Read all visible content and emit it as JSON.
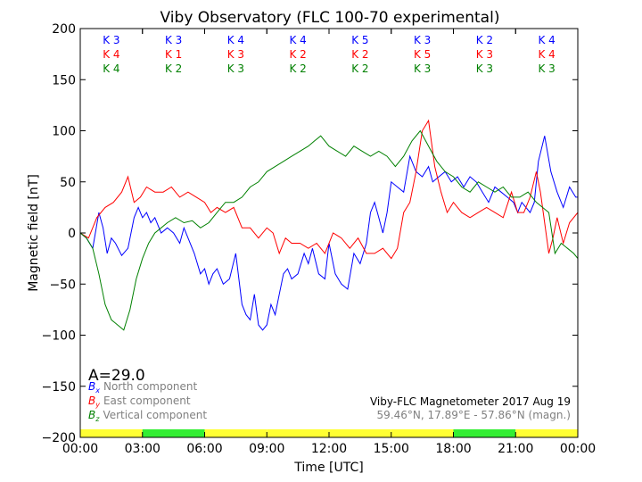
{
  "chart_data": {
    "type": "line",
    "title": "Viby Observatory (FLC 100-70 experimental)",
    "xlabel": "Time [UTC]",
    "ylabel": "Magnetic field [nT]",
    "xlim": [
      0,
      24
    ],
    "ylim": [
      -200,
      200
    ],
    "x_ticks": [
      0,
      3,
      6,
      9,
      12,
      15,
      18,
      21,
      24
    ],
    "x_tick_labels": [
      "00:00",
      "03:00",
      "06:00",
      "09:00",
      "12:00",
      "15:00",
      "18:00",
      "21:00",
      "00:00"
    ],
    "y_ticks": [
      -200,
      -150,
      -100,
      -50,
      0,
      50,
      100,
      150,
      200
    ],
    "y_tick_labels": [
      "−200",
      "−150",
      "−100",
      "−50",
      "0",
      "50",
      "100",
      "150",
      "200"
    ],
    "grid": false,
    "annotation_activity": "A=29.0",
    "legend": {
      "placement": "bottom-left",
      "entries": [
        {
          "symbol": "B",
          "subscript": "x",
          "label": "North component",
          "color": "#0000ff"
        },
        {
          "symbol": "B",
          "subscript": "y",
          "label": "East component",
          "color": "#ff0000"
        },
        {
          "symbol": "B",
          "subscript": "z",
          "label": "Vertical component",
          "color": "#008000"
        }
      ]
    },
    "station_info": {
      "line1": "Viby-FLC Magnetometer 2017 Aug 19",
      "line2": "59.46°N, 17.89°E - 57.86°N (magn.)"
    },
    "k_index_rows": [
      {
        "color": "#0000ff",
        "labels": [
          "K 3",
          "K 3",
          "K 4",
          "K 4",
          "K 5",
          "K 3",
          "K 2",
          "K 4"
        ]
      },
      {
        "color": "#ff0000",
        "labels": [
          "K 4",
          "K 1",
          "K 3",
          "K 2",
          "K 2",
          "K 5",
          "K 3",
          "K 4"
        ]
      },
      {
        "color": "#008000",
        "labels": [
          "K 4",
          "K 2",
          "K 3",
          "K 2",
          "K 2",
          "K 3",
          "K 3",
          "K 3"
        ]
      }
    ],
    "activity_bar": {
      "values": [
        "yellow",
        "green",
        "yellow",
        "yellow",
        "yellow",
        "yellow",
        "green",
        "yellow"
      ],
      "colors": {
        "yellow": "#ffff33",
        "green": "#33ee33"
      }
    },
    "series": [
      {
        "name": "North component",
        "color": "#0000ff",
        "x": [
          0,
          0.3,
          0.6,
          0.9,
          1.1,
          1.3,
          1.5,
          1.7,
          2.0,
          2.3,
          2.6,
          2.8,
          3.0,
          3.2,
          3.4,
          3.6,
          3.9,
          4.2,
          4.5,
          4.8,
          5.0,
          5.2,
          5.5,
          5.8,
          6.0,
          6.2,
          6.4,
          6.6,
          6.9,
          7.2,
          7.5,
          7.8,
          8.0,
          8.2,
          8.4,
          8.6,
          8.8,
          9.0,
          9.2,
          9.4,
          9.6,
          9.8,
          10.0,
          10.2,
          10.5,
          10.8,
          11.0,
          11.2,
          11.5,
          11.8,
          12.0,
          12.3,
          12.6,
          12.9,
          13.2,
          13.5,
          13.8,
          14.0,
          14.2,
          14.4,
          14.6,
          14.8,
          15.0,
          15.3,
          15.6,
          15.9,
          16.2,
          16.5,
          16.8,
          17.0,
          17.3,
          17.6,
          17.9,
          18.2,
          18.5,
          18.8,
          19.1,
          19.4,
          19.7,
          20.0,
          20.3,
          20.6,
          20.9,
          21.1,
          21.3,
          21.5,
          21.7,
          21.9,
          22.1,
          22.4,
          22.7,
          23.0,
          23.3,
          23.6,
          23.9,
          24.0
        ],
        "values": [
          0,
          -5,
          -15,
          20,
          5,
          -20,
          -5,
          -10,
          -22,
          -15,
          15,
          25,
          15,
          20,
          10,
          15,
          0,
          5,
          0,
          -10,
          5,
          -5,
          -20,
          -40,
          -35,
          -50,
          -40,
          -35,
          -50,
          -45,
          -20,
          -70,
          -80,
          -85,
          -60,
          -90,
          -95,
          -90,
          -70,
          -80,
          -60,
          -40,
          -35,
          -45,
          -40,
          -20,
          -30,
          -15,
          -40,
          -45,
          -10,
          -40,
          -50,
          -55,
          -20,
          -30,
          -10,
          20,
          30,
          15,
          0,
          20,
          50,
          45,
          40,
          75,
          60,
          55,
          65,
          50,
          55,
          60,
          50,
          55,
          45,
          55,
          50,
          40,
          30,
          45,
          40,
          35,
          30,
          20,
          30,
          25,
          20,
          30,
          70,
          95,
          60,
          40,
          25,
          45,
          35,
          35
        ]
      },
      {
        "name": "East component",
        "color": "#ff0000",
        "x": [
          0,
          0.4,
          0.8,
          1.2,
          1.6,
          2.0,
          2.3,
          2.6,
          2.9,
          3.2,
          3.6,
          4.0,
          4.4,
          4.8,
          5.2,
          5.6,
          6.0,
          6.3,
          6.6,
          7.0,
          7.4,
          7.8,
          8.2,
          8.6,
          9.0,
          9.3,
          9.6,
          9.9,
          10.2,
          10.6,
          11.0,
          11.4,
          11.8,
          12.2,
          12.6,
          13.0,
          13.4,
          13.8,
          14.2,
          14.6,
          15.0,
          15.3,
          15.6,
          15.9,
          16.2,
          16.5,
          16.8,
          17.1,
          17.4,
          17.7,
          18.0,
          18.4,
          18.8,
          19.2,
          19.6,
          20.0,
          20.4,
          20.8,
          21.1,
          21.4,
          21.7,
          22.0,
          22.2,
          22.4,
          22.6,
          22.8,
          23.0,
          23.3,
          23.6,
          24.0
        ],
        "values": [
          0,
          -5,
          15,
          25,
          30,
          40,
          55,
          30,
          35,
          45,
          40,
          40,
          45,
          35,
          40,
          35,
          30,
          20,
          25,
          20,
          25,
          5,
          5,
          -5,
          5,
          0,
          -20,
          -5,
          -10,
          -10,
          -15,
          -10,
          -20,
          0,
          -5,
          -15,
          -5,
          -20,
          -20,
          -15,
          -25,
          -15,
          20,
          30,
          60,
          100,
          110,
          65,
          40,
          20,
          30,
          20,
          15,
          20,
          25,
          20,
          15,
          40,
          20,
          20,
          35,
          60,
          40,
          10,
          -20,
          -5,
          15,
          -10,
          10,
          20
        ]
      },
      {
        "name": "Vertical component",
        "color": "#008000",
        "x": [
          0,
          0.3,
          0.6,
          0.9,
          1.2,
          1.5,
          1.8,
          2.1,
          2.4,
          2.7,
          3.0,
          3.3,
          3.6,
          3.9,
          4.2,
          4.6,
          5.0,
          5.4,
          5.8,
          6.2,
          6.6,
          7.0,
          7.4,
          7.8,
          8.2,
          8.6,
          9.0,
          9.4,
          9.8,
          10.2,
          10.6,
          11.0,
          11.3,
          11.6,
          12.0,
          12.4,
          12.8,
          13.2,
          13.6,
          14.0,
          14.4,
          14.8,
          15.2,
          15.6,
          16.0,
          16.4,
          16.8,
          17.2,
          17.6,
          18.0,
          18.4,
          18.8,
          19.2,
          19.6,
          20.0,
          20.4,
          20.8,
          21.2,
          21.6,
          22.0,
          22.3,
          22.6,
          22.9,
          23.2,
          23.5,
          23.8,
          24.0
        ],
        "values": [
          0,
          -5,
          -15,
          -40,
          -70,
          -85,
          -90,
          -95,
          -75,
          -45,
          -25,
          -10,
          0,
          5,
          10,
          15,
          10,
          12,
          5,
          10,
          20,
          30,
          30,
          35,
          45,
          50,
          60,
          65,
          70,
          75,
          80,
          85,
          90,
          95,
          85,
          80,
          75,
          85,
          80,
          75,
          80,
          75,
          65,
          75,
          90,
          100,
          85,
          70,
          60,
          55,
          45,
          40,
          50,
          45,
          40,
          45,
          35,
          35,
          40,
          30,
          25,
          20,
          -20,
          -10,
          -15,
          -20,
          -25
        ]
      }
    ]
  }
}
